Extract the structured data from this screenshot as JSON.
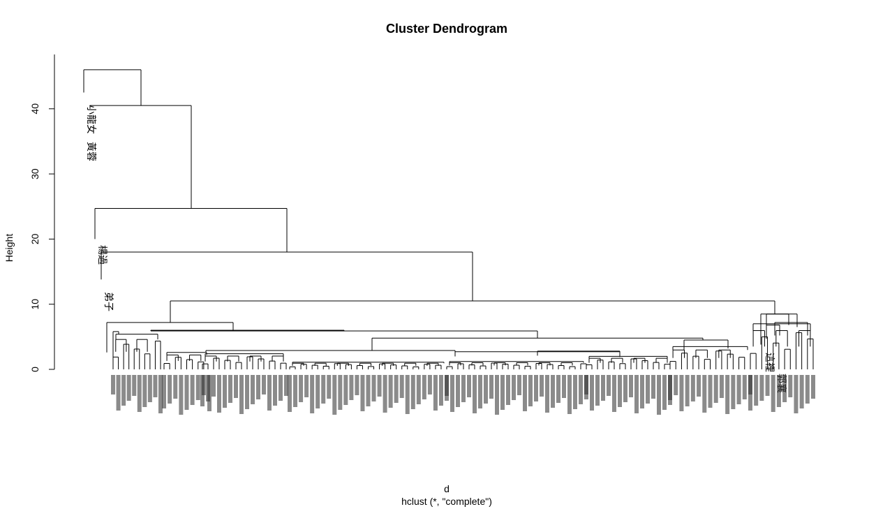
{
  "chart_data": {
    "type": "dendrogram",
    "title": "Cluster Dendrogram",
    "xlabel": "d",
    "sublabel": "hclust (*, \"complete\")",
    "ylabel": "Height",
    "ylim": [
      0,
      45
    ],
    "yticks": [
      0,
      10,
      20,
      30,
      40
    ],
    "grid": false,
    "legend": "none",
    "line_color": "#000000",
    "labeled_leaves": [
      "小龍女",
      "黃蓉",
      "楊過",
      "弟子",
      "郭襄",
      "這裡"
    ],
    "merges": [
      {
        "height": 46.0,
        "join": [
          "小龍女",
          "rest"
        ]
      },
      {
        "height": 40.5,
        "join": [
          "黃蓉",
          "rest"
        ]
      },
      {
        "height": 24.7,
        "join": [
          "楊過",
          "rest"
        ]
      },
      {
        "height": 18.0,
        "join": [
          "弟子",
          "rest"
        ]
      },
      {
        "height": 10.5,
        "join": [
          "main-group",
          "right-group"
        ]
      },
      {
        "height": 7.2,
        "join": [
          "left-subgroup",
          "center-group"
        ]
      },
      {
        "height": 8.5,
        "join": [
          "right-group-a",
          "right-group-b"
        ]
      }
    ]
  }
}
